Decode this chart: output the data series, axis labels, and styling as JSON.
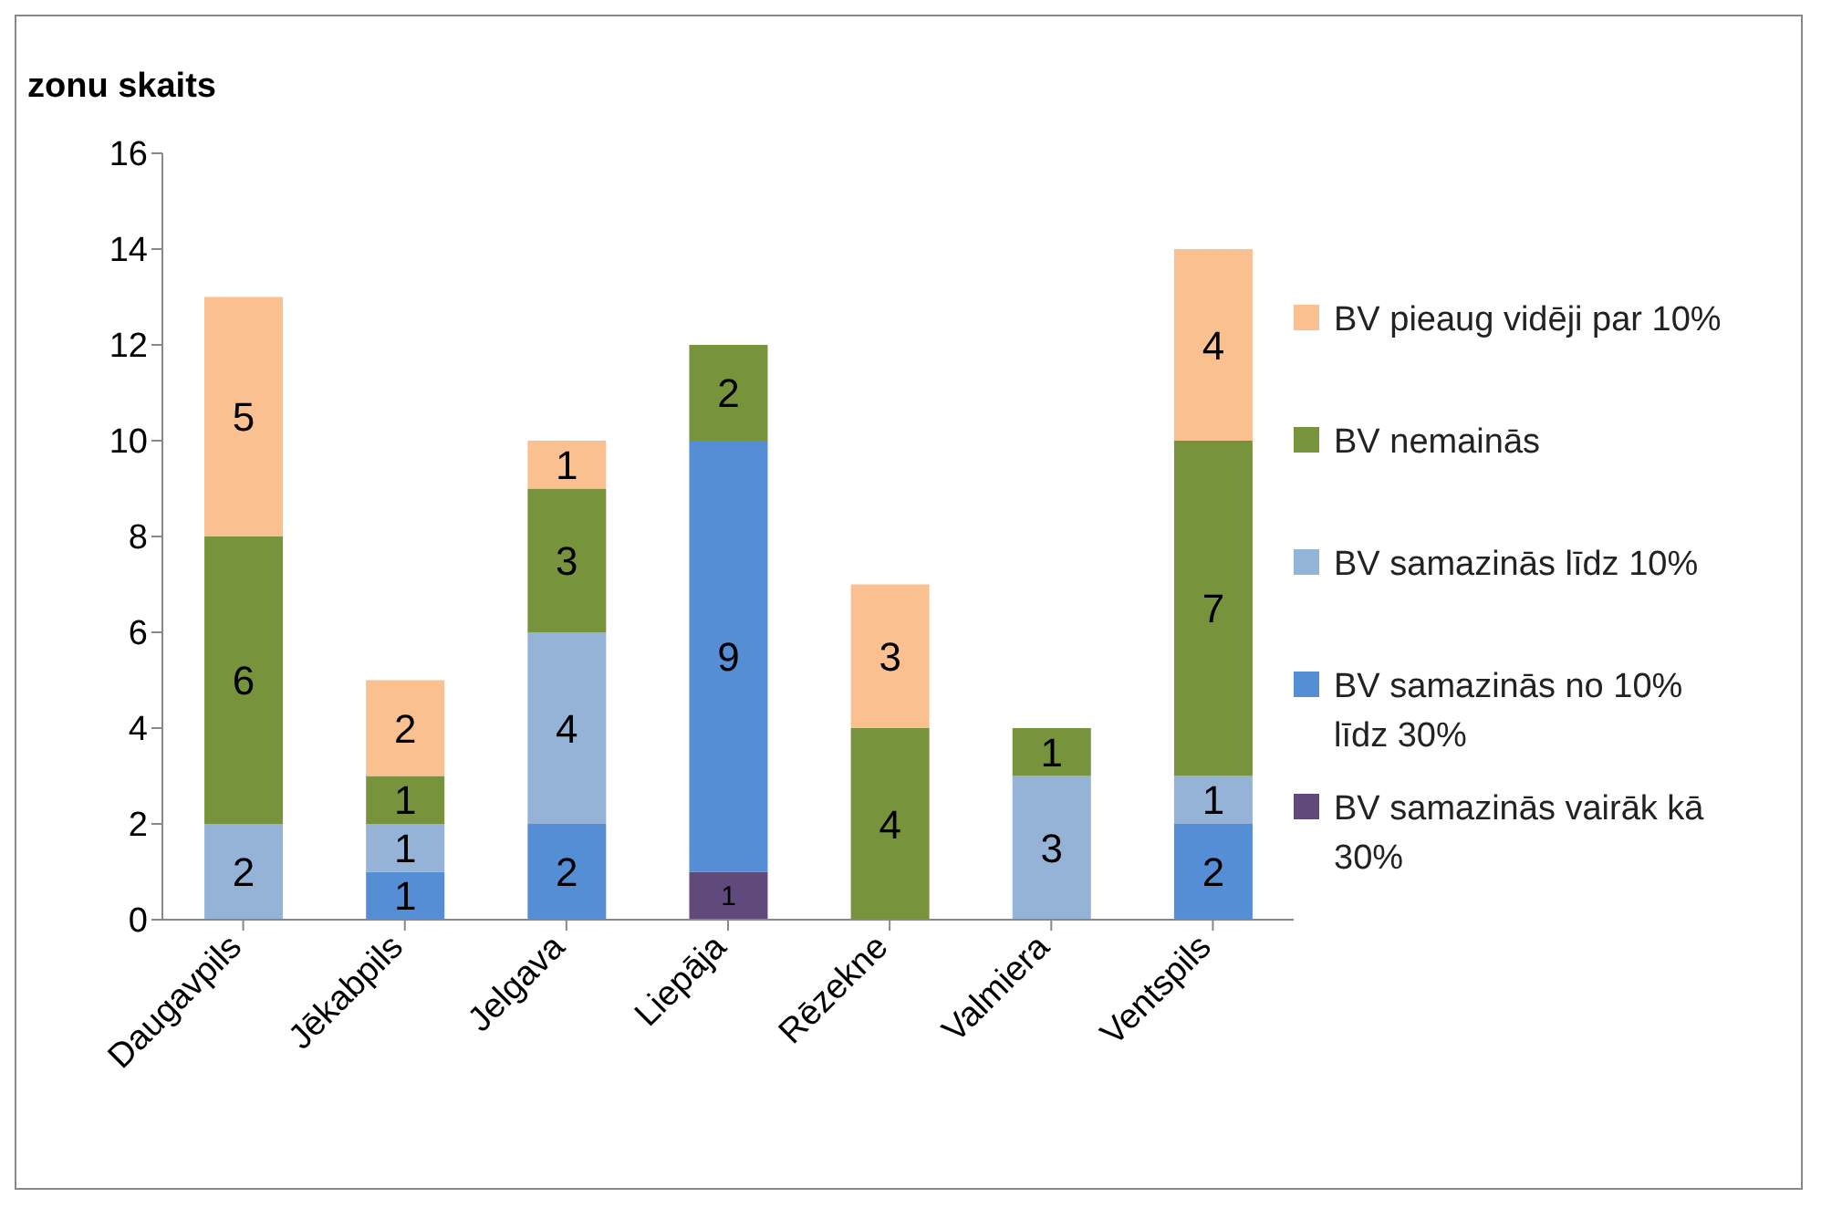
{
  "chart_data": {
    "type": "bar",
    "stacked": true,
    "ylabel": "zonu skaits",
    "categories": [
      "Daugavpils",
      "Jēkabpils",
      "Jelgava",
      "Liepāja",
      "Rēzekne",
      "Valmiera",
      "Ventspils"
    ],
    "series": [
      {
        "name": "BV samazinās vairāk kā 30%",
        "color": "#604a7b",
        "values": [
          null,
          null,
          null,
          1,
          null,
          null,
          null
        ]
      },
      {
        "name": "BV samazinās no 10%  līdz 30%",
        "color": "#558ed5",
        "values": [
          null,
          1,
          2,
          9,
          null,
          null,
          2
        ]
      },
      {
        "name": "BV samazinās līdz 10%",
        "color": "#95b3d7",
        "values": [
          2,
          1,
          4,
          null,
          null,
          3,
          1
        ]
      },
      {
        "name": "BV nemainās",
        "color": "#77933c",
        "values": [
          6,
          1,
          3,
          2,
          4,
          1,
          7
        ]
      },
      {
        "name": "BV pieaug vidēji par 10%",
        "color": "#fac090",
        "values": [
          5,
          2,
          1,
          null,
          3,
          null,
          4
        ]
      }
    ],
    "ylim": [
      0,
      16
    ],
    "yticks": [
      0,
      2,
      4,
      6,
      8,
      10,
      12,
      14,
      16
    ],
    "grid": false,
    "legend": "right",
    "data_labels": true
  }
}
